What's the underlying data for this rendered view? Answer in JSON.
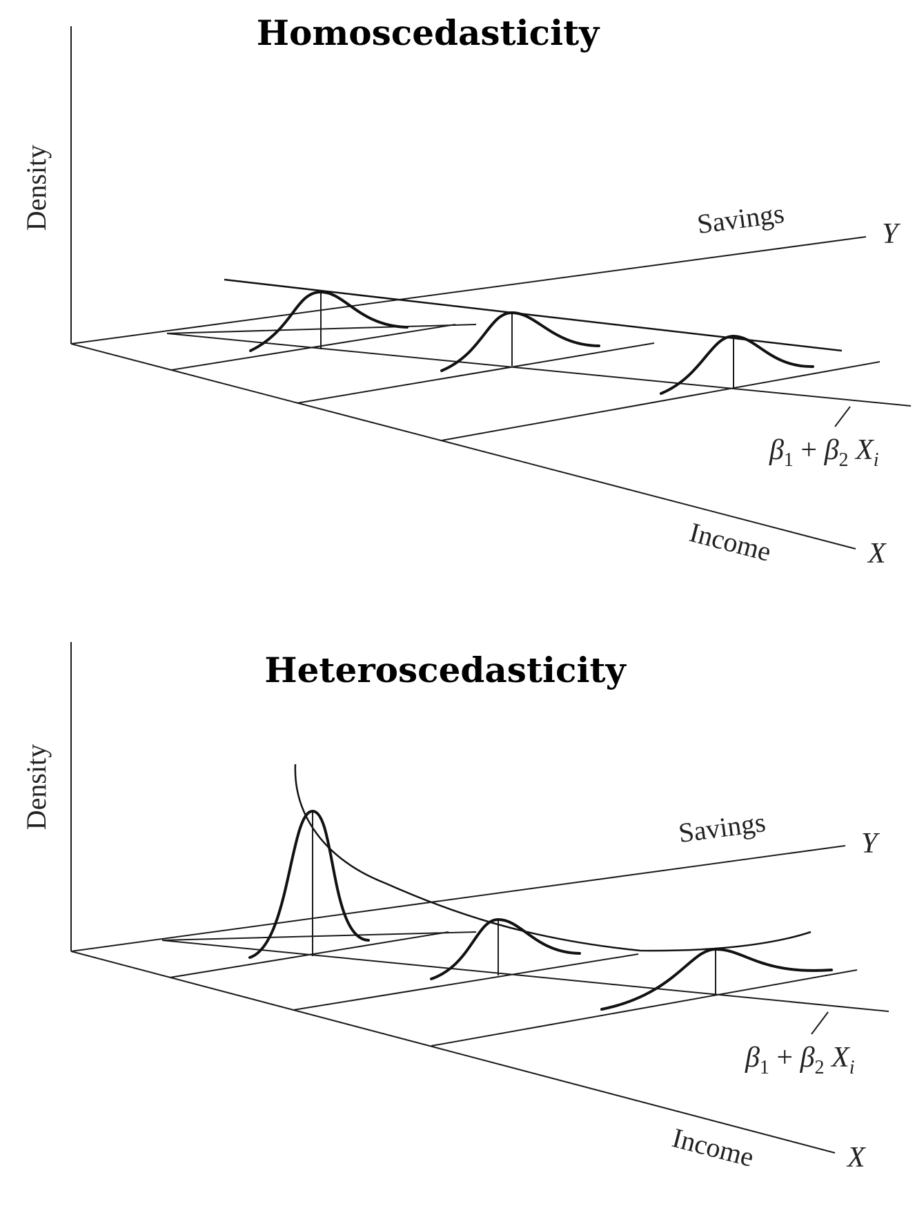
{
  "panels": [
    {
      "id": "homoscedasticity",
      "title": "Homoscedasticity",
      "density_label": "Density",
      "savings_label": "Savings",
      "y_axis_letter": "Y",
      "income_label": "Income",
      "x_axis_letter": "X",
      "regression_label": {
        "beta1": "β",
        "beta1_sub": "1",
        "plus": " + ",
        "beta2": "β",
        "beta2_sub": "2",
        "x": "X",
        "x_sub": "i"
      },
      "distributions": [
        {
          "position": 1,
          "relative_spread": 1.0,
          "relative_height": 1.0
        },
        {
          "position": 2,
          "relative_spread": 1.0,
          "relative_height": 1.0
        },
        {
          "position": 3,
          "relative_spread": 1.0,
          "relative_height": 1.0
        }
      ]
    },
    {
      "id": "heteroscedasticity",
      "title": "Heteroscedasticity",
      "density_label": "Density",
      "savings_label": "Savings",
      "y_axis_letter": "Y",
      "income_label": "Income",
      "x_axis_letter": "X",
      "regression_label": {
        "beta1": "β",
        "beta1_sub": "1",
        "plus": " + ",
        "beta2": "β",
        "beta2_sub": "2",
        "x": "X",
        "x_sub": "i"
      },
      "distributions": [
        {
          "position": 1,
          "relative_spread": 0.5,
          "relative_height": 2.2
        },
        {
          "position": 2,
          "relative_spread": 1.0,
          "relative_height": 1.0
        },
        {
          "position": 3,
          "relative_spread": 1.6,
          "relative_height": 0.6
        }
      ]
    }
  ]
}
